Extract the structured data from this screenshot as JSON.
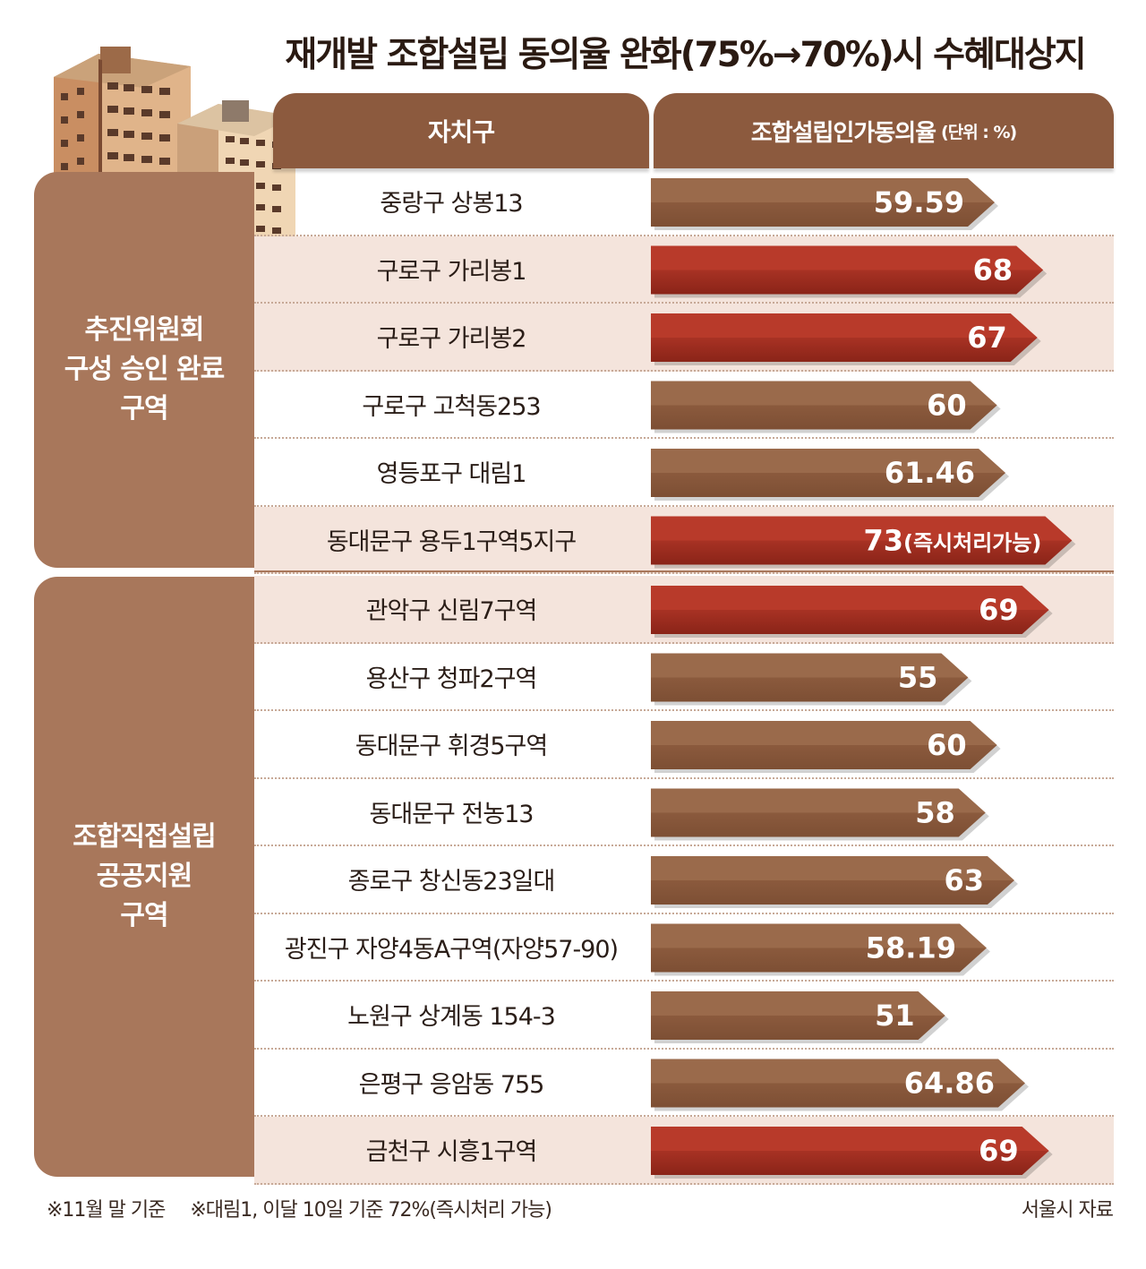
{
  "title": "재개발 조합설립 동의율 완화(75%→70%)시 수혜대상지",
  "header": {
    "district": "자치구",
    "rate": "조합설립인가동의율",
    "unit": "(단위 : %)"
  },
  "groups": [
    {
      "label": "추진위원회\n구성 승인 완료\n구역"
    },
    {
      "label": "조합직접설립\n공공지원\n구역"
    }
  ],
  "chart_data": {
    "type": "bar",
    "title": "재개발 조합설립 동의율 완화(75%→70%)시 수혜대상지",
    "ylabel": "조합설립인가동의율 (단위 : %)",
    "categories": [
      "중랑구 상봉13",
      "구로구 가리봉1",
      "구로구 가리봉2",
      "구로구 고척동253",
      "영등포구 대림1",
      "동대문구 용두1구역5지구",
      "관악구 신림7구역",
      "용산구  청파2구역",
      "동대문구 휘경5구역",
      "동대문구 전농13",
      "종로구 창신동23일대",
      "광진구 자양4동A구역(자양57-90)",
      "노원구 상계동 154-3",
      "은평구 응암동 755",
      "금천구 시흥1구역"
    ],
    "values": [
      59.59,
      68,
      67,
      60,
      61.46,
      73,
      69,
      55,
      60,
      58,
      63,
      58.19,
      51,
      64.86,
      69
    ],
    "value_labels": [
      "59.59",
      "68",
      "67",
      "60",
      "61.46",
      "73",
      "69",
      "55",
      "60",
      "58",
      "63",
      "58.19",
      "51",
      "64.86",
      "69"
    ],
    "value_notes": [
      "",
      "",
      "",
      "",
      "",
      "(즉시처리가능)",
      "",
      "",
      "",
      "",
      "",
      "",
      "",
      "",
      ""
    ],
    "group_index": [
      0,
      0,
      0,
      0,
      0,
      0,
      1,
      1,
      1,
      1,
      1,
      1,
      1,
      1,
      1
    ],
    "highlight": [
      false,
      true,
      true,
      false,
      false,
      true,
      true,
      false,
      false,
      false,
      false,
      false,
      false,
      false,
      true
    ],
    "colors": {
      "normal": "#8b5a3d",
      "highlight": "#a83224"
    }
  },
  "footnotes": [
    "※11월 말 기준",
    "※대림1, 이달 10일 기준 72%(즉시처리 가능)"
  ],
  "source": "서울시 자료"
}
